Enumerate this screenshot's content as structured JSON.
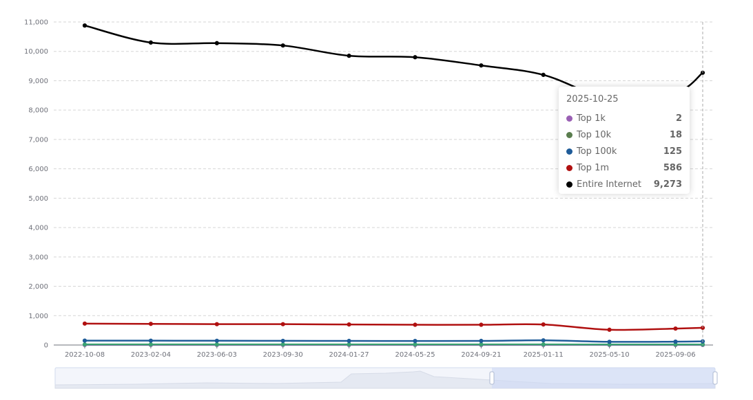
{
  "chart_data": {
    "type": "line",
    "x": [
      "2022-10-08",
      "2023-02-04",
      "2023-06-03",
      "2023-09-30",
      "2024-01-27",
      "2024-05-25",
      "2024-09-21",
      "2025-01-11",
      "2025-05-10",
      "2025-09-06",
      "2025-10-25"
    ],
    "x_tick_labels": [
      "2022-10-08",
      "2023-02-04",
      "2023-06-03",
      "2023-09-30",
      "2024-01-27",
      "2024-05-25",
      "2024-09-21",
      "2025-01-11",
      "2025-05-10",
      "2025-09-06"
    ],
    "y_ticks": [
      0,
      1000,
      2000,
      3000,
      4000,
      5000,
      6000,
      7000,
      8000,
      9000,
      10000,
      11000
    ],
    "y_tick_labels": [
      "0",
      "1,000",
      "2,000",
      "3,000",
      "4,000",
      "5,000",
      "6,000",
      "7,000",
      "8,000",
      "9,000",
      "10,000",
      "11,000"
    ],
    "ylim": [
      0,
      11000
    ],
    "grid": true,
    "series": [
      {
        "name": "Top 1k",
        "color": "#9a60b4",
        "values": [
          3,
          3,
          3,
          3,
          3,
          3,
          3,
          3,
          2,
          2,
          2
        ]
      },
      {
        "name": "Top 10k",
        "color": "#3ba272",
        "values": [
          20,
          20,
          20,
          20,
          20,
          20,
          20,
          20,
          18,
          18,
          18
        ]
      },
      {
        "name": "Top 100k",
        "color": "#1f5c99",
        "values": [
          150,
          148,
          145,
          142,
          140,
          138,
          140,
          160,
          110,
          115,
          125
        ]
      },
      {
        "name": "Top 1m",
        "color": "#b01010",
        "values": [
          730,
          720,
          710,
          710,
          700,
          690,
          690,
          700,
          520,
          560,
          586
        ]
      },
      {
        "name": "Entire Internet",
        "color": "#000000",
        "values": [
          10880,
          10300,
          10280,
          10200,
          9850,
          9800,
          9520,
          9200,
          8400,
          8600,
          9273
        ]
      }
    ],
    "tooltip": {
      "date": "2025-10-25",
      "rows": [
        {
          "name": "Top 1k",
          "value": "2",
          "color": "#9a60b4"
        },
        {
          "name": "Top 10k",
          "value": "18",
          "color": "#5a7d4e"
        },
        {
          "name": "Top 100k",
          "value": "125",
          "color": "#1f5c99"
        },
        {
          "name": "Top 1m",
          "value": "586",
          "color": "#b01010"
        },
        {
          "name": "Entire Internet",
          "value": "9,273",
          "color": "#000000"
        }
      ]
    }
  }
}
